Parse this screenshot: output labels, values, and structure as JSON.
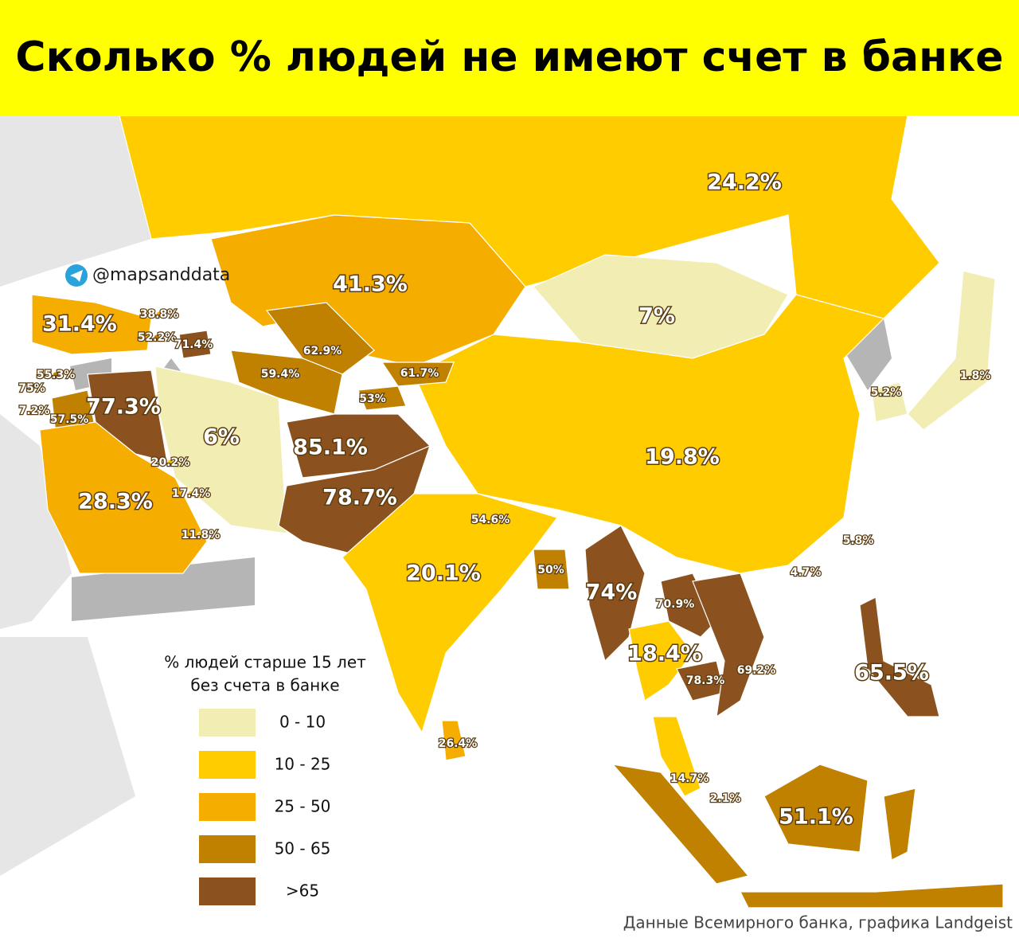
{
  "header": {
    "title": "Сколько % людей не имеют счет в банке"
  },
  "handle": "@mapsanddata",
  "legend": {
    "title": [
      "% людей старше 15 лет",
      "без счета в банке"
    ],
    "items": [
      {
        "label": "0  - 10",
        "color": "#f2edb3"
      },
      {
        "label": "10 - 25",
        "color": "#ffcc00"
      },
      {
        "label": "25 - 50",
        "color": "#f5ad00"
      },
      {
        "label": "50 - 65",
        "color": "#c08000"
      },
      {
        "label": ">65",
        "color": "#8b5220"
      }
    ]
  },
  "source": "Данные Всемирного банка, графика Landgeist",
  "regions": [
    {
      "label": "24.2%",
      "color": "#ffcc00"
    },
    {
      "label": "41.3%",
      "color": "#f5ad00"
    },
    {
      "label": "7%",
      "color": "#f2edb3"
    },
    {
      "label": "1.8%",
      "color": "#f2edb3"
    },
    {
      "label": "5.2%",
      "color": "#f2edb3"
    },
    {
      "label": "19.8%",
      "color": "#ffcc00"
    },
    {
      "label": "31.4%",
      "color": "#f5ad00"
    },
    {
      "label": "38.8%",
      "color": "#f5ad00"
    },
    {
      "label": "52.2%",
      "color": "#c08000"
    },
    {
      "label": "71.4%",
      "color": "#8b5220"
    },
    {
      "label": "62.9%",
      "color": "#c08000"
    },
    {
      "label": "59.4%",
      "color": "#c08000"
    },
    {
      "label": "61.7%",
      "color": "#c08000"
    },
    {
      "label": "53%",
      "color": "#c08000"
    },
    {
      "label": "55.3%",
      "color": "#c08000"
    },
    {
      "label": "75%",
      "color": "#8b5220"
    },
    {
      "label": "7.2%",
      "color": "#f2edb3"
    },
    {
      "label": "57.5%",
      "color": "#c08000"
    },
    {
      "label": "77.3%",
      "color": "#8b5220"
    },
    {
      "label": "6%",
      "color": "#f2edb3"
    },
    {
      "label": "85.1%",
      "color": "#8b5220"
    },
    {
      "label": "78.7%",
      "color": "#8b5220"
    },
    {
      "label": "20.2%",
      "color": "#ffcc00"
    },
    {
      "label": "17.4%",
      "color": "#ffcc00"
    },
    {
      "label": "28.3%",
      "color": "#f5ad00"
    },
    {
      "label": "11.8%",
      "color": "#ffcc00"
    },
    {
      "label": "54.6%",
      "color": "#c08000"
    },
    {
      "label": "50%",
      "color": "#c08000"
    },
    {
      "label": "20.1%",
      "color": "#ffcc00"
    },
    {
      "label": "74%",
      "color": "#8b5220"
    },
    {
      "label": "70.9%",
      "color": "#8b5220"
    },
    {
      "label": "18.4%",
      "color": "#ffcc00"
    },
    {
      "label": "78.3%",
      "color": "#8b5220"
    },
    {
      "label": "69.2%",
      "color": "#8b5220"
    },
    {
      "label": "5.8%",
      "color": "#f2edb3"
    },
    {
      "label": "4.7%",
      "color": "#f2edb3"
    },
    {
      "label": "65.5%",
      "color": "#8b5220"
    },
    {
      "label": "26.4%",
      "color": "#f5ad00"
    },
    {
      "label": "14.7%",
      "color": "#ffcc00"
    },
    {
      "label": "2.1%",
      "color": "#f2edb3"
    },
    {
      "label": "51.1%",
      "color": "#c08000"
    }
  ]
}
